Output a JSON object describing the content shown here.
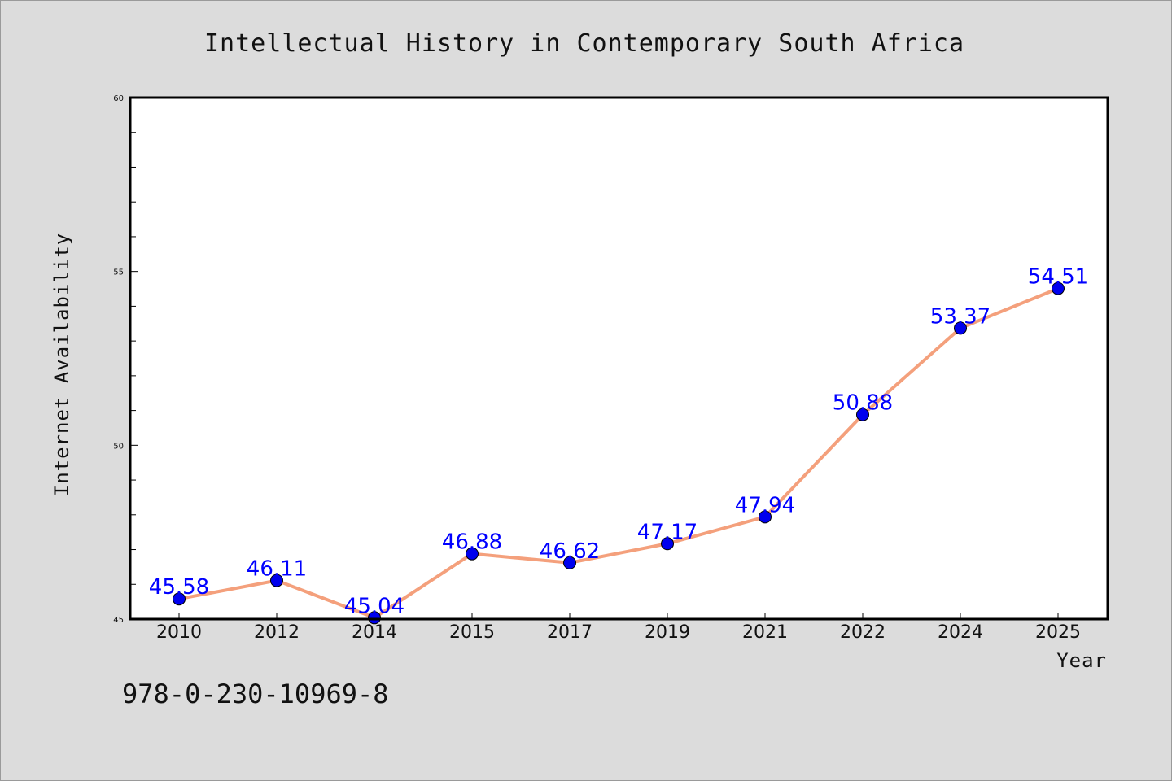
{
  "chart_data": {
    "type": "line",
    "title": "Intellectual History in Contemporary South Africa",
    "xlabel": "Year",
    "ylabel": "Internet Availability",
    "categories": [
      "2010",
      "2012",
      "2014",
      "2015",
      "2017",
      "2019",
      "2021",
      "2022",
      "2024",
      "2025"
    ],
    "values": [
      45.58,
      46.11,
      45.04,
      46.88,
      46.62,
      47.17,
      47.94,
      50.88,
      53.37,
      54.51
    ],
    "data_labels": [
      "45.58",
      "46.11",
      "45.04",
      "46.88",
      "46.62",
      "47.17",
      "47.94",
      "50.88",
      "53.37",
      "54.51"
    ],
    "ylim": [
      45,
      60
    ],
    "yticks": [
      "45",
      "50",
      "55",
      "60"
    ],
    "grid": false,
    "legend": "none",
    "line_color": "#f4a07c",
    "marker_color": "#0000ee",
    "label_color": "#0000ff"
  },
  "footer_text": "978-0-230-10969-8"
}
